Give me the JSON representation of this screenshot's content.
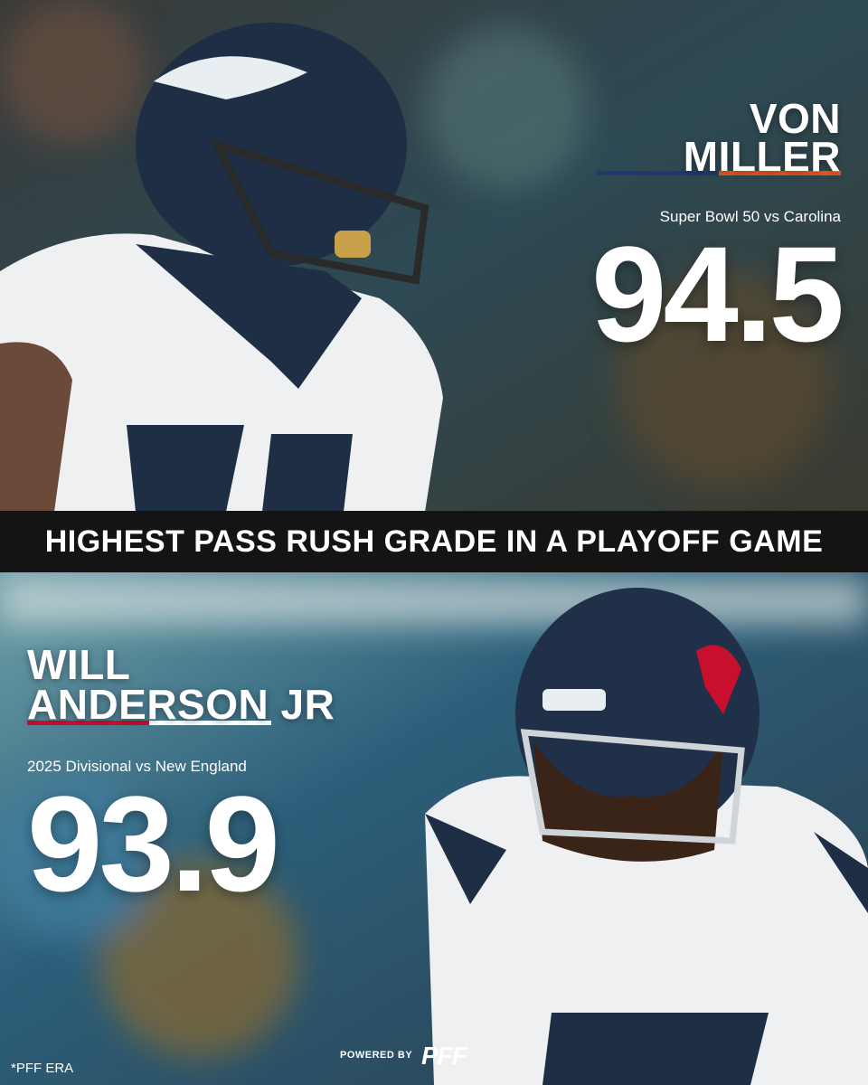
{
  "top": {
    "name_lines": [
      "VON",
      "MILLER"
    ],
    "game": "Super Bowl 50 vs Carolina",
    "grade": 94.5
  },
  "banner": "HIGHEST PASS RUSH GRADE IN A PLAYOFF GAME",
  "bottom": {
    "name_lines": [
      "WILL",
      "ANDERSON JR"
    ],
    "game": "2025 Divisional vs New England",
    "grade": 93.9
  },
  "footer": {
    "note": "*PFF ERA",
    "powered_by": "POWERED BY",
    "brand": "PFF"
  }
}
